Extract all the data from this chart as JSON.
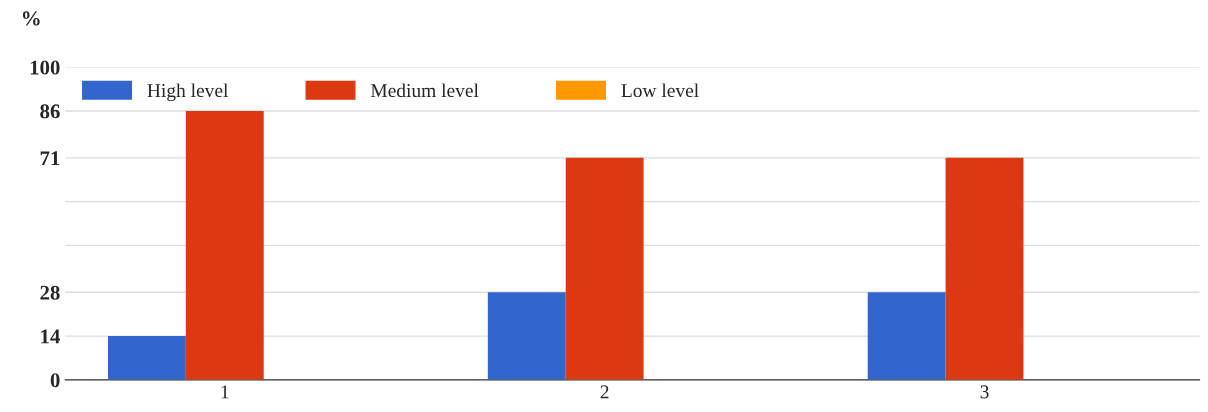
{
  "chart_data": {
    "type": "bar",
    "ylabel": "%",
    "categories": [
      "1",
      "2",
      "3"
    ],
    "series": [
      {
        "name": "High level",
        "color": "#3366cc",
        "values": [
          14,
          28,
          28
        ]
      },
      {
        "name": "Medium level",
        "color": "#dc3912",
        "values": [
          86,
          71,
          71
        ]
      },
      {
        "name": "Low level",
        "color": "#ff9900",
        "values": [
          0,
          0,
          0
        ]
      }
    ],
    "ylim": [
      0,
      100
    ],
    "yticks": [
      0,
      14,
      28,
      {
        "value": 43,
        "label": null
      },
      {
        "value": 57,
        "label": null
      },
      71,
      86,
      100
    ],
    "grid": "y",
    "legend": "top left"
  }
}
